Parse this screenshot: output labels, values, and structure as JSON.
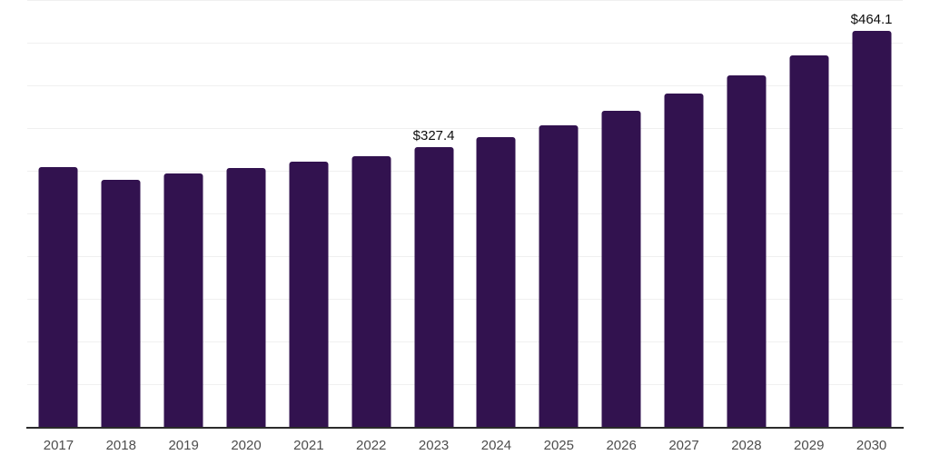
{
  "chart_data": {
    "type": "bar",
    "title": "",
    "xlabel": "",
    "ylabel": "",
    "categories": [
      "2017",
      "2018",
      "2019",
      "2020",
      "2021",
      "2022",
      "2023",
      "2024",
      "2025",
      "2026",
      "2027",
      "2028",
      "2029",
      "2030"
    ],
    "values": [
      304,
      289,
      297,
      303,
      311,
      317,
      327.4,
      339,
      353,
      370,
      390,
      412,
      435,
      464.1
    ],
    "data_labels": [
      "",
      "",
      "",
      "",
      "",
      "",
      "$327.4",
      "",
      "",
      "",
      "",
      "",
      "",
      "$464.1"
    ],
    "ylim": [
      0,
      500
    ],
    "gridline_step": 50,
    "grid": "horizontal-only",
    "legend": "none",
    "y_tick_labels_visible": false,
    "colors": {
      "bar": "#32124f",
      "gridline": "#f0f0f0",
      "axis_line": "#2b2b2b",
      "tick_label": "#4d4d4d",
      "data_label": "#0d0d0d",
      "background": "#ffffff"
    }
  }
}
